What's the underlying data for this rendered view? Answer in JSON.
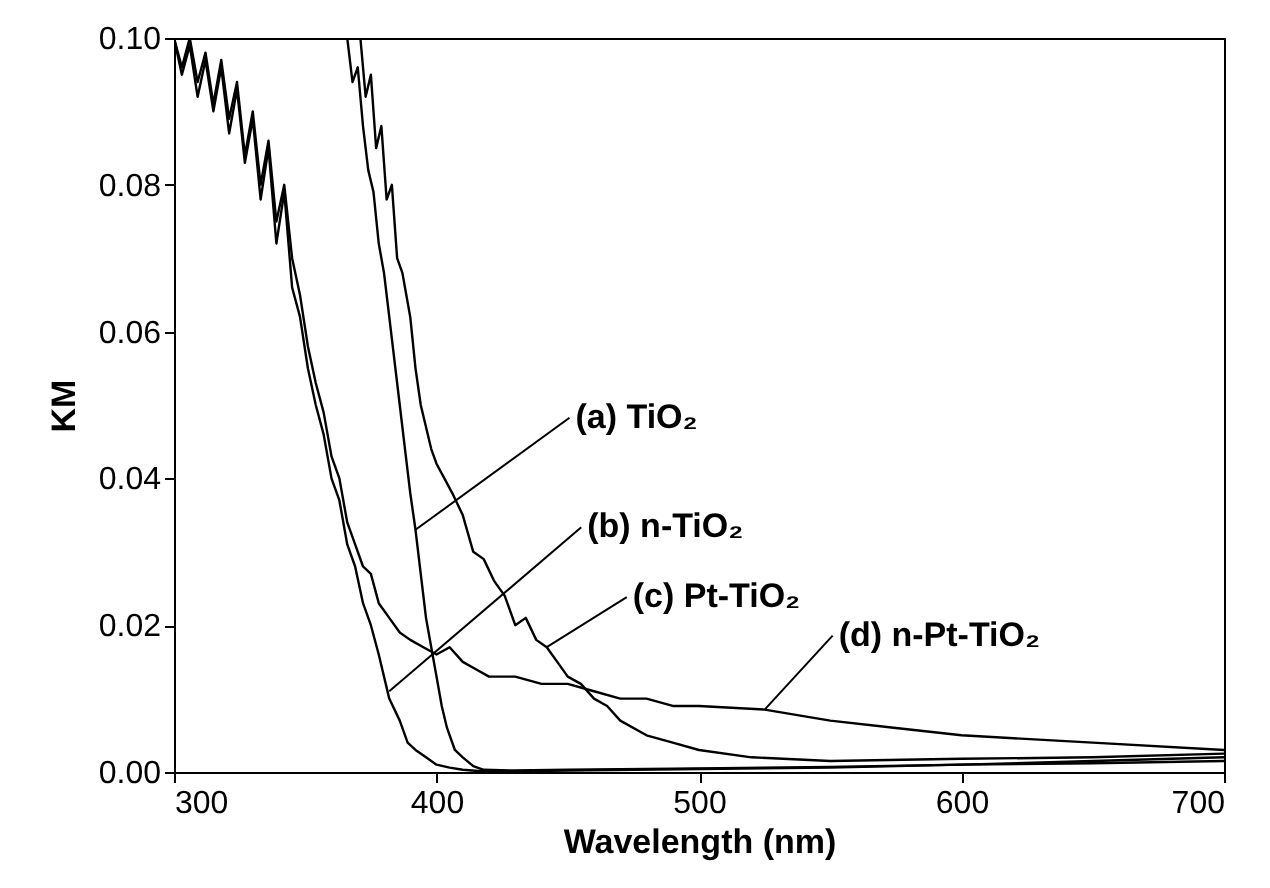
{
  "chart_data": {
    "type": "line",
    "xlabel": "Wavelength (nm)",
    "ylabel": "KM",
    "xlim": [
      300,
      700
    ],
    "ylim": [
      0,
      0.1
    ],
    "xticks": [
      300,
      400,
      500,
      600,
      700
    ],
    "yticks": [
      {
        "value": 0,
        "label": "0.00"
      },
      {
        "value": 0.02,
        "label": "0.02"
      },
      {
        "value": 0.04,
        "label": "0.04"
      },
      {
        "value": 0.06,
        "label": "0.06"
      },
      {
        "value": 0.08,
        "label": "0.08"
      },
      {
        "value": 0.1,
        "label": "0.10"
      }
    ],
    "line_style": "solid",
    "series": [
      {
        "color": "#000000",
        "x": [
          366,
          368,
          370,
          372,
          374,
          376,
          378,
          380,
          382,
          384,
          386,
          388,
          390,
          392,
          394,
          396,
          398,
          400,
          402,
          404,
          407,
          410,
          414,
          418,
          430,
          450,
          500,
          550,
          600,
          650,
          700
        ],
        "values": [
          0.1,
          0.094,
          0.096,
          0.088,
          0.082,
          0.079,
          0.072,
          0.068,
          0.062,
          0.056,
          0.05,
          0.044,
          0.038,
          0.033,
          0.027,
          0.021,
          0.017,
          0.013,
          0.009,
          0.006,
          0.003,
          0.002,
          0.0008,
          0.0003,
          0.0002,
          0.0003,
          0.0005,
          0.0007,
          0.001,
          0.0012,
          0.0015
        ]
      },
      {
        "color": "#000000",
        "x": [
          300,
          303,
          306,
          309,
          312,
          315,
          318,
          321,
          324,
          327,
          330,
          333,
          336,
          339,
          342,
          345,
          348,
          351,
          354,
          357,
          360,
          363,
          366,
          369,
          372,
          375,
          378,
          382,
          386,
          389,
          392,
          396,
          400,
          405,
          410,
          417,
          430,
          450,
          500,
          550,
          600,
          650,
          700
        ],
        "values": [
          0.1,
          0.095,
          0.099,
          0.092,
          0.097,
          0.09,
          0.096,
          0.087,
          0.093,
          0.083,
          0.089,
          0.078,
          0.085,
          0.072,
          0.079,
          0.066,
          0.062,
          0.055,
          0.05,
          0.046,
          0.04,
          0.037,
          0.031,
          0.028,
          0.023,
          0.02,
          0.016,
          0.01,
          0.007,
          0.004,
          0.003,
          0.002,
          0.001,
          0.0006,
          0.0003,
          0.0001,
          0.0001,
          0.0002,
          0.0004,
          0.0006,
          0.001,
          0.0015,
          0.002
        ]
      },
      {
        "color": "#000000",
        "x": [
          371,
          373,
          375,
          377,
          379,
          381,
          383,
          385,
          387,
          390,
          392,
          394,
          396,
          398,
          400,
          403,
          406,
          410,
          414,
          418,
          422,
          426,
          430,
          434,
          438,
          442,
          446,
          450,
          455,
          460,
          465,
          470,
          480,
          490,
          500,
          520,
          550,
          600,
          650,
          700
        ],
        "values": [
          0.1,
          0.092,
          0.095,
          0.085,
          0.088,
          0.078,
          0.08,
          0.07,
          0.068,
          0.062,
          0.055,
          0.05,
          0.047,
          0.044,
          0.042,
          0.04,
          0.038,
          0.035,
          0.03,
          0.029,
          0.026,
          0.024,
          0.02,
          0.021,
          0.018,
          0.017,
          0.015,
          0.013,
          0.012,
          0.01,
          0.009,
          0.007,
          0.005,
          0.004,
          0.003,
          0.002,
          0.0015,
          0.0018,
          0.002,
          0.0025
        ]
      },
      {
        "color": "#000000",
        "x": [
          300,
          303,
          306,
          309,
          312,
          315,
          318,
          321,
          324,
          327,
          330,
          333,
          336,
          339,
          342,
          345,
          348,
          351,
          354,
          357,
          360,
          363,
          366,
          369,
          372,
          375,
          378,
          382,
          386,
          390,
          395,
          400,
          405,
          410,
          415,
          420,
          430,
          440,
          450,
          460,
          470,
          480,
          490,
          500,
          525,
          550,
          575,
          600,
          650,
          700
        ],
        "values": [
          0.1,
          0.096,
          0.1,
          0.094,
          0.098,
          0.091,
          0.097,
          0.089,
          0.094,
          0.084,
          0.09,
          0.08,
          0.086,
          0.075,
          0.08,
          0.07,
          0.065,
          0.058,
          0.053,
          0.049,
          0.043,
          0.04,
          0.034,
          0.031,
          0.028,
          0.027,
          0.023,
          0.021,
          0.019,
          0.018,
          0.017,
          0.016,
          0.017,
          0.015,
          0.014,
          0.013,
          0.013,
          0.012,
          0.012,
          0.011,
          0.01,
          0.01,
          0.009,
          0.009,
          0.0085,
          0.007,
          0.006,
          0.005,
          0.004,
          0.003
        ]
      }
    ],
    "annotations": [
      {
        "text": "(a) TiO₂",
        "x": 392,
        "y": 0.033
      },
      {
        "text": "(b) n-TiO₂",
        "x": 382,
        "y": 0.011
      },
      {
        "text": "(c) Pt-TiO₂",
        "x": 442,
        "y": 0.017
      },
      {
        "text": "(d) n-Pt-TiO₂",
        "x": 525,
        "y": 0.0085
      }
    ]
  }
}
